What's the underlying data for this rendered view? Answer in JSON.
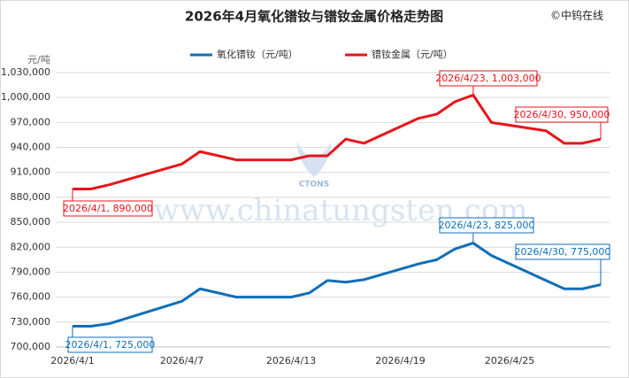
{
  "chart_data": {
    "type": "line",
    "title": "2026年4月氧化镨钕与镨钕金属价格走势图",
    "copyright": "©中钨在线",
    "y_unit": "元/吨",
    "watermark": "www.chinatungsten.com",
    "logo_text": "CTONS",
    "x": [
      "2026/4/1",
      "2026/4/2",
      "2026/4/3",
      "2026/4/7",
      "2026/4/8",
      "2026/4/10",
      "2026/4/13",
      "2026/4/14",
      "2026/4/15",
      "2026/4/16",
      "2026/4/17",
      "2026/4/20",
      "2026/4/21",
      "2026/4/22",
      "2026/4/23",
      "2026/4/24",
      "2026/4/27",
      "2026/4/28",
      "2026/4/29",
      "2026/4/30"
    ],
    "xticks": [
      "2026/4/1",
      "2026/4/7",
      "2026/4/13",
      "2026/4/19",
      "2026/4/25"
    ],
    "series": [
      {
        "name": "氧化镨钕（元/吨）",
        "color": "#0f6eb8",
        "values": [
          725000,
          725000,
          728000,
          755000,
          770000,
          760000,
          760000,
          765000,
          780000,
          778000,
          781000,
          800000,
          805000,
          818000,
          825000,
          810000,
          780000,
          770000,
          770000,
          775000
        ]
      },
      {
        "name": "镨钕金属（元/吨）",
        "color": "#e8141b",
        "values": [
          890000,
          890000,
          895000,
          920000,
          935000,
          925000,
          925000,
          930000,
          930000,
          950000,
          945000,
          975000,
          980000,
          995000,
          1003000,
          970000,
          960000,
          945000,
          945000,
          950000
        ]
      }
    ],
    "annotations": [
      {
        "text": "2026/4/23, 1,003,000",
        "color": "#e8141b"
      },
      {
        "text": "2026/4/30, 950,000",
        "color": "#e8141b"
      },
      {
        "text": "2026/4/1, 890,000",
        "color": "#e8141b"
      },
      {
        "text": "2026/4/23, 825,000",
        "color": "#0f6eb8"
      },
      {
        "text": "2026/4/30, 775,000",
        "color": "#0f6eb8"
      },
      {
        "text": "2026/4/1, 725,000",
        "color": "#0f6eb8"
      }
    ],
    "ylim": [
      700000,
      1030000
    ],
    "yticks": [
      {
        "value": 700000,
        "label": "700,000"
      },
      {
        "value": 730000,
        "label": "730,000"
      },
      {
        "value": 760000,
        "label": "760,000"
      },
      {
        "value": 790000,
        "label": "790,000"
      },
      {
        "value": 820000,
        "label": "820,000"
      },
      {
        "value": 850000,
        "label": "850,000"
      },
      {
        "value": 880000,
        "label": "880,000"
      },
      {
        "value": 910000,
        "label": "910,000"
      },
      {
        "value": 940000,
        "label": "940,000"
      },
      {
        "value": 970000,
        "label": "970,000"
      },
      {
        "value": 1000000,
        "label": "1,000,000"
      },
      {
        "value": 1030000,
        "label": "1,030,000"
      }
    ],
    "grid": true
  }
}
